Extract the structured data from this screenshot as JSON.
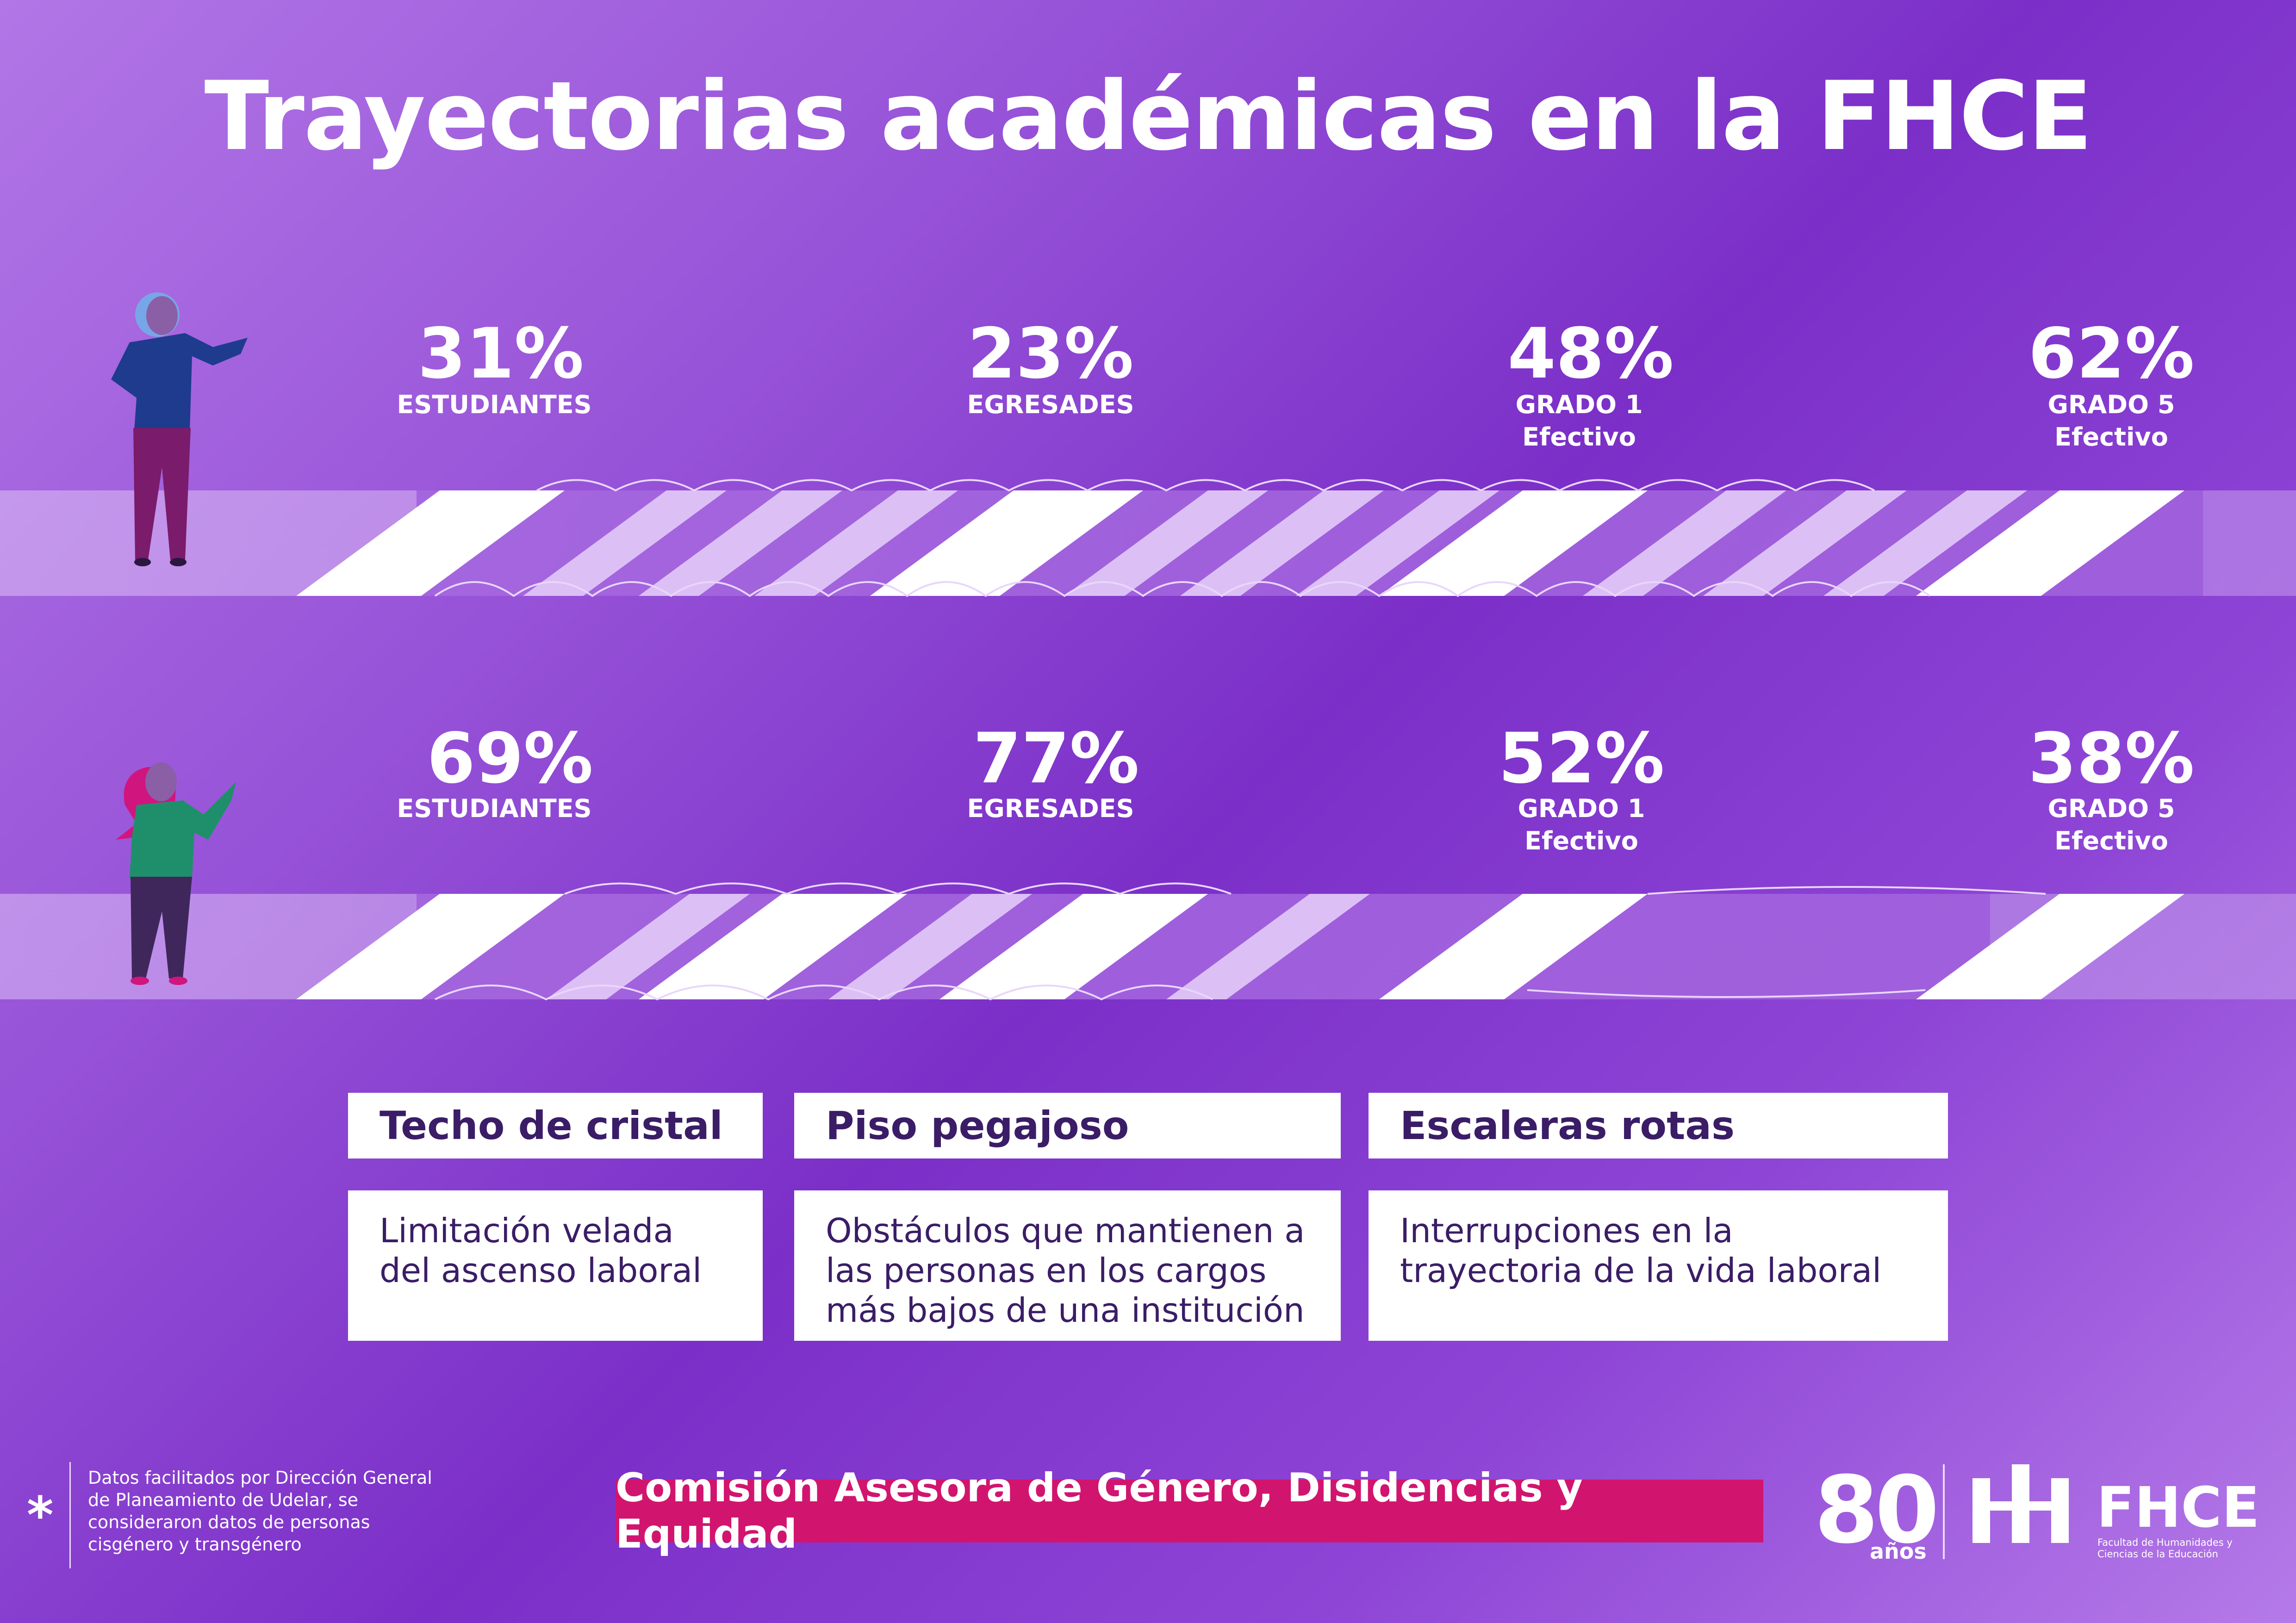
{
  "title": "Trayectorias académicas en la FHCE",
  "rows": [
    {
      "stats": [
        {
          "value": "31%",
          "label": "ESTUDIANTES"
        },
        {
          "value": "23%",
          "label": "EGRESADES"
        },
        {
          "value": "48%",
          "label": "GRADO 1\nEfectivo"
        },
        {
          "value": "62%",
          "label": "GRADO 5\nEfectivo"
        }
      ]
    },
    {
      "stats": [
        {
          "value": "69%",
          "label": "ESTUDIANTES"
        },
        {
          "value": "77%",
          "label": "EGRESADES"
        },
        {
          "value": "52%",
          "label": "GRADO 1\nEfectivo"
        },
        {
          "value": "38%",
          "label": "GRADO 5\nEfectivo"
        }
      ]
    }
  ],
  "concepts": [
    {
      "title": "Techo de cristal",
      "description": "Limitación velada del ascenso laboral"
    },
    {
      "title": "Piso pegajoso",
      "description": "Obstáculos que mantienen a las personas en los cargos más bajos de una institución"
    },
    {
      "title": "Escaleras rotas",
      "description": "Interrupciones en la trayectoria de la vida laboral"
    }
  ],
  "footnote": {
    "asterisk": "*",
    "text": "Datos facilitados por Dirección General de Planeamiento de Udelar, se consideraron datos de personas cisgénero y transgénero"
  },
  "commission": "Comisión Asesora de Género, Disidencias y Equidad",
  "logo": {
    "anniversary_number": "80",
    "anniversary_word": "años",
    "name": "FHCE",
    "subtitle": "Facultad de Humanidades y Ciencias de la Educación"
  },
  "colors": {
    "background_light": "#b276e6",
    "background_dark": "#7b2fc8",
    "box_text": "#3a1d66",
    "commission_bg": "#d1156f",
    "stripe_white": "#ffffff",
    "stripe_light": "#dcc0f5"
  }
}
